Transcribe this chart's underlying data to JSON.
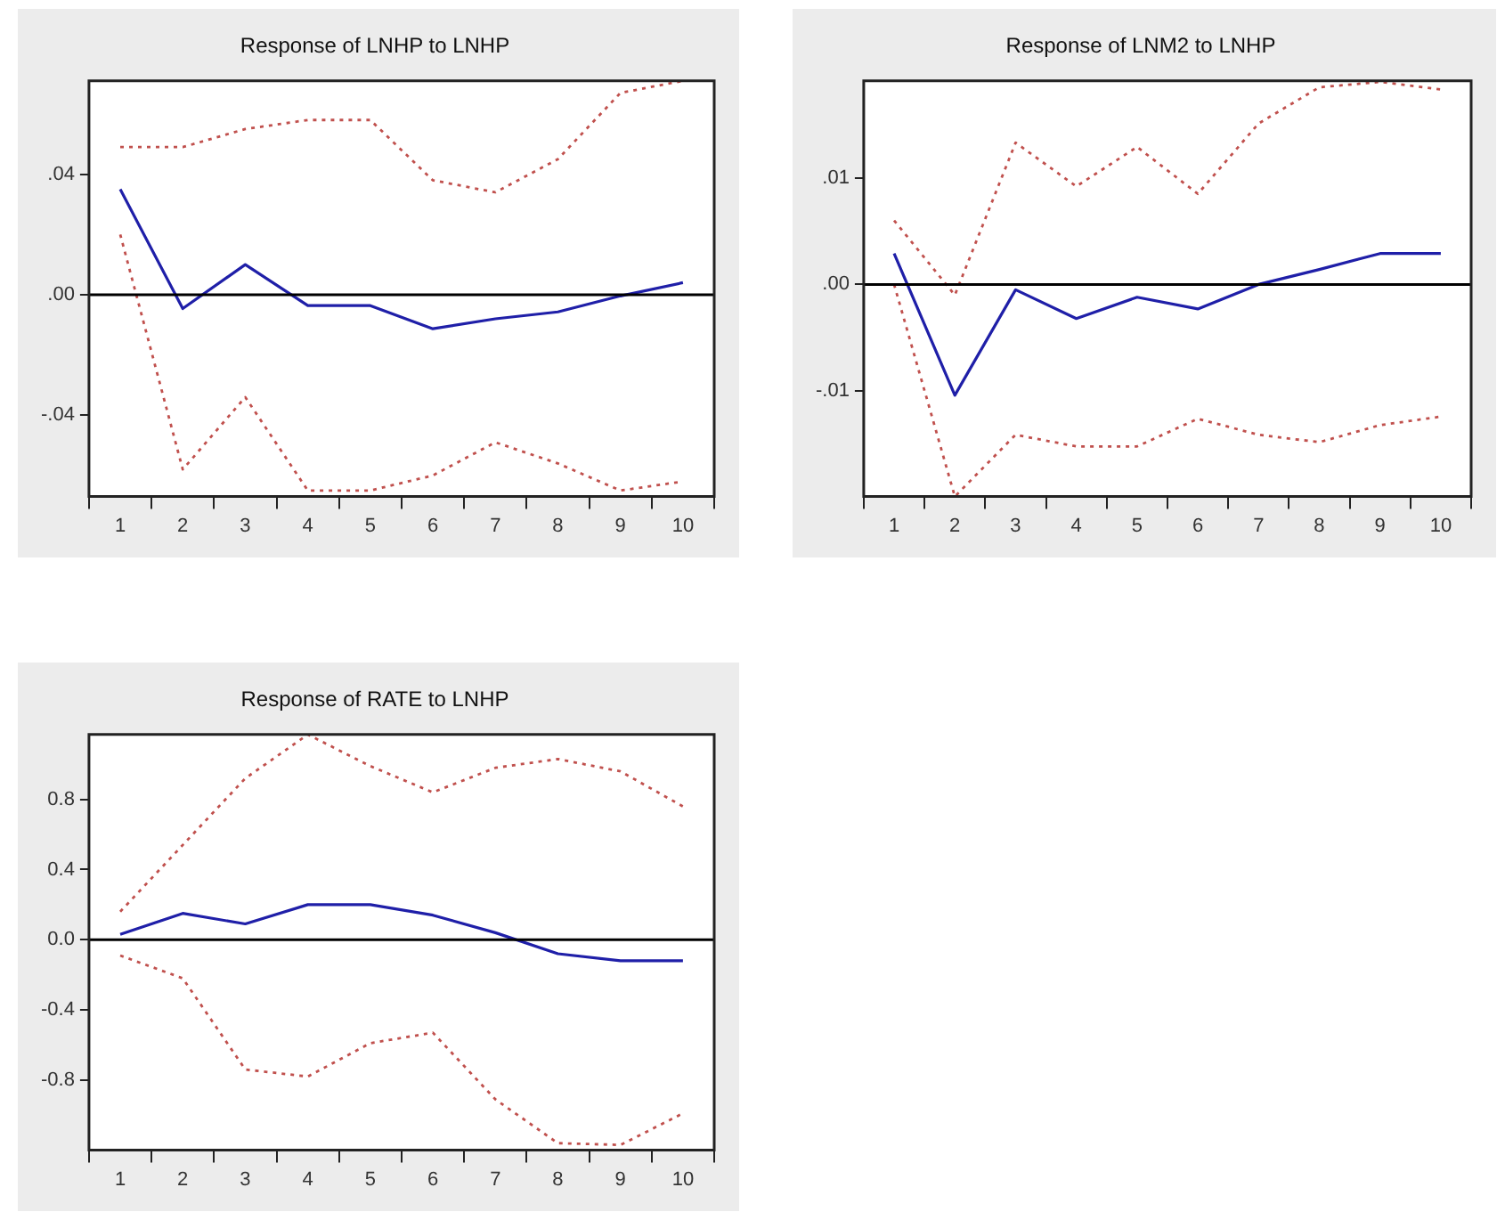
{
  "chart_data": [
    {
      "type": "line",
      "title": "Response of LNHP to LNHP",
      "categories": [
        "1",
        "2",
        "3",
        "4",
        "5",
        "6",
        "7",
        "8",
        "9",
        "10"
      ],
      "ylim": [
        -0.067,
        0.071
      ],
      "yticks": [
        {
          "value": -0.04,
          "label": "-.04"
        },
        {
          "value": 0,
          "label": ".00"
        },
        {
          "value": 0.04,
          "label": ".04"
        }
      ],
      "grid": false,
      "legend": false,
      "marker": "none",
      "series": [
        {
          "color": "#c0504d",
          "line_style": "dotted",
          "values": [
            0.049,
            0.049,
            0.055,
            0.058,
            0.058,
            0.038,
            0.034,
            0.045,
            0.067,
            0.071
          ]
        },
        {
          "color": "#1f1fa8",
          "line_style": "solid",
          "values": [
            0.035,
            -0.0046,
            0.01,
            -0.0036,
            -0.0036,
            -0.0113,
            -0.008,
            -0.0057,
            -0.0004,
            0.004
          ]
        },
        {
          "color": "#c0504d",
          "line_style": "dotted",
          "values": [
            0.02,
            -0.058,
            -0.034,
            -0.065,
            -0.065,
            -0.06,
            -0.049,
            -0.056,
            -0.065,
            -0.062
          ]
        }
      ],
      "ref_lines": [
        {
          "axis": "y",
          "value": 0,
          "color": "#000000"
        }
      ]
    },
    {
      "type": "line",
      "title": "Response of LNM2 to LNHP",
      "categories": [
        "1",
        "2",
        "3",
        "4",
        "5",
        "6",
        "7",
        "8",
        "9",
        "10"
      ],
      "ylim": [
        -0.0199,
        0.0191
      ],
      "yticks": [
        {
          "value": -0.01,
          "label": "-.01"
        },
        {
          "value": 0,
          "label": ".00"
        },
        {
          "value": 0.01,
          "label": ".01"
        }
      ],
      "grid": false,
      "legend": false,
      "marker": "none",
      "series": [
        {
          "color": "#c0504d",
          "line_style": "dotted",
          "values": [
            0.006,
            -0.001,
            0.0133,
            0.0092,
            0.0129,
            0.0085,
            0.0151,
            0.0185,
            0.019,
            0.0183
          ]
        },
        {
          "color": "#1f1fa8",
          "line_style": "solid",
          "values": [
            0.0029,
            -0.0104,
            -0.0005,
            -0.0032,
            -0.0012,
            -0.0023,
            0,
            0.0014,
            0.0029,
            0.0029
          ]
        },
        {
          "color": "#c0504d",
          "line_style": "dotted",
          "values": [
            0,
            -0.0199,
            -0.0141,
            -0.0152,
            -0.0152,
            -0.0126,
            -0.0141,
            -0.0148,
            -0.0132,
            -0.0124
          ]
        }
      ],
      "ref_lines": [
        {
          "axis": "y",
          "value": 0,
          "color": "#000000"
        }
      ]
    },
    {
      "type": "line",
      "title": "Response of RATE to LNHP",
      "categories": [
        "1",
        "2",
        "3",
        "4",
        "5",
        "6",
        "7",
        "8",
        "9",
        "10"
      ],
      "ylim": [
        -1.2,
        1.17
      ],
      "yticks": [
        {
          "value": -0.8,
          "label": "-0.8"
        },
        {
          "value": -0.4,
          "label": "-0.4"
        },
        {
          "value": 0,
          "label": "0.0"
        },
        {
          "value": 0.4,
          "label": "0.4"
        },
        {
          "value": 0.8,
          "label": "0.8"
        }
      ],
      "grid": false,
      "legend": false,
      "marker": "none",
      "series": [
        {
          "color": "#c0504d",
          "line_style": "dotted",
          "values": [
            0.16,
            0.54,
            0.92,
            1.17,
            0.99,
            0.84,
            0.98,
            1.03,
            0.96,
            0.76
          ]
        },
        {
          "color": "#1f1fa8",
          "line_style": "solid",
          "values": [
            0.03,
            0.15,
            0.09,
            0.2,
            0.2,
            0.14,
            0.04,
            -0.08,
            -0.12,
            -0.12
          ]
        },
        {
          "color": "#c0504d",
          "line_style": "dotted",
          "values": [
            -0.09,
            -0.22,
            -0.74,
            -0.78,
            -0.59,
            -0.53,
            -0.91,
            -1.16,
            -1.17,
            -0.99
          ]
        }
      ],
      "ref_lines": [
        {
          "axis": "y",
          "value": 0,
          "color": "#000000"
        }
      ]
    }
  ]
}
